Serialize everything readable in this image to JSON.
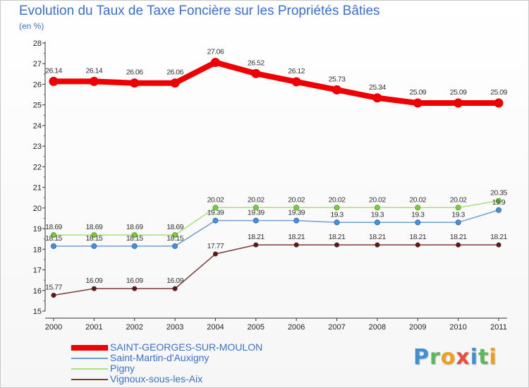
{
  "title": "Evolution du Taux de Taxe Foncière sur les Propriétés Bâties",
  "unit": "(en %)",
  "brand": "Proxiti",
  "brand_letters": [
    {
      "char": "P",
      "color": "#3f8fd6"
    },
    {
      "char": "r",
      "color": "#5cb85c"
    },
    {
      "char": "o",
      "color": "#f0a020"
    },
    {
      "char": "x",
      "color": "#e84c3d"
    },
    {
      "char": "i",
      "color": "#3f8fd6"
    },
    {
      "char": "t",
      "color": "#5cb85c"
    },
    {
      "char": "i",
      "color": "#f0a020"
    }
  ],
  "chart_data": {
    "type": "line",
    "title": "Evolution du Taux de Taxe Foncière sur les Propriétés Bâties",
    "ylabel": "(en %)",
    "xlabel": "",
    "ylim": [
      15,
      28
    ],
    "yticks": [
      15,
      16,
      17,
      18,
      19,
      20,
      21,
      22,
      23,
      24,
      25,
      26,
      27,
      28
    ],
    "grid": false,
    "legend_position": "bottom-left",
    "categories": [
      "2000",
      "2001",
      "2002",
      "2003",
      "2004",
      "2005",
      "2006",
      "2007",
      "2008",
      "2009",
      "2010",
      "2011"
    ],
    "series": [
      {
        "name": "SAINT-GEORGES-SUR-MOULON",
        "color": "#ee0000",
        "values": [
          26.14,
          26.14,
          26.06,
          26.06,
          27.06,
          26.52,
          26.12,
          25.73,
          25.34,
          25.09,
          25.09,
          25.09
        ],
        "labels": [
          "26.14",
          "26.14",
          "26.06",
          "26.06",
          "27.06",
          "26.52",
          "26.12",
          "25.73",
          "25.34",
          "25.09",
          "25.09",
          "25.09"
        ]
      },
      {
        "name": "Saint-Martin-d'Auxigny",
        "color": "#6f9fcf",
        "values": [
          18.15,
          18.15,
          18.15,
          18.15,
          19.39,
          19.39,
          19.39,
          19.3,
          19.3,
          19.3,
          19.3,
          19.9
        ],
        "labels": [
          "18.15",
          "18.15",
          "18.15",
          "18.15",
          "19.39",
          "19.39",
          "19.39",
          "19.3",
          "19.3",
          "19.3",
          "19.3",
          "19.9"
        ]
      },
      {
        "name": "Pigny",
        "color": "#a8e07c",
        "values": [
          18.69,
          18.69,
          18.69,
          18.69,
          20.02,
          20.02,
          20.02,
          20.02,
          20.02,
          20.02,
          20.02,
          20.35
        ],
        "labels": [
          "18.69",
          "18.69",
          "18.69",
          "18.69",
          "20.02",
          "20.02",
          "20.02",
          "20.02",
          "20.02",
          "20.02",
          "20.02",
          "20.35"
        ]
      },
      {
        "name": "Vignoux-sous-les-Aix",
        "color": "#7a3a3a",
        "values": [
          15.77,
          16.09,
          16.09,
          16.09,
          17.77,
          18.21,
          18.21,
          18.21,
          18.21,
          18.21,
          18.21,
          18.21
        ],
        "labels": [
          "15.77",
          "16.09",
          "16.09",
          "16.09",
          "17.77",
          "18.21",
          "18.21",
          "18.21",
          "18.21",
          "18.21",
          "18.21",
          "18.21"
        ]
      }
    ]
  }
}
